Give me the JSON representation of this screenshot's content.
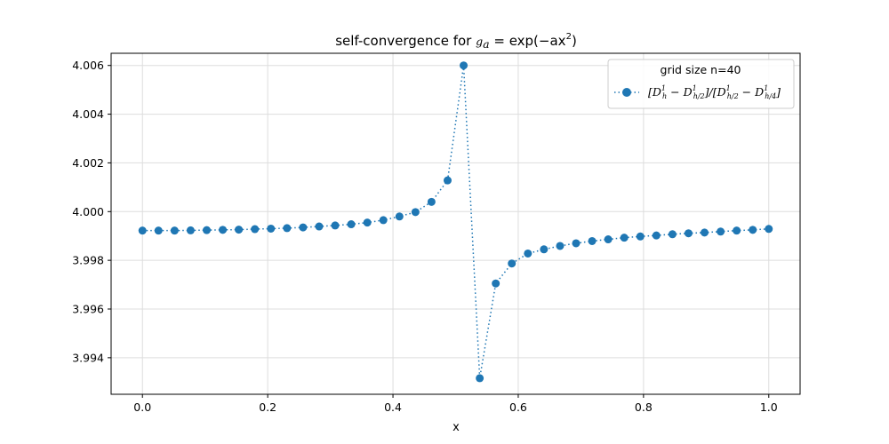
{
  "chart_data": {
    "type": "line",
    "title_prefix": "self-convergence for ",
    "title_math": "g",
    "title_math_sub": "a",
    "title_math_rest": " = exp(−ax",
    "title_math_sup": "2",
    "title_math_close": ")",
    "xlabel": "x",
    "ylabel": "",
    "xlim": [
      -0.05,
      1.05
    ],
    "ylim": [
      3.9925,
      4.0065
    ],
    "x_ticks": [
      0.0,
      0.2,
      0.4,
      0.6,
      0.8,
      1.0
    ],
    "x_tick_labels": [
      "0.0",
      "0.2",
      "0.4",
      "0.6",
      "0.8",
      "1.0"
    ],
    "y_ticks": [
      3.994,
      3.996,
      3.998,
      4.0,
      4.002,
      4.004,
      4.006
    ],
    "y_tick_labels": [
      "3.994",
      "3.996",
      "3.998",
      "4.000",
      "4.002",
      "4.004",
      "4.006"
    ],
    "grid": true,
    "legend": {
      "placement": "top-right",
      "title": "grid size n=40",
      "entry": "[D¹h − D¹h/2]/[D¹h/2 − D¹h/4]"
    },
    "colors": {
      "series": "#1f77b4"
    },
    "series": [
      {
        "name": "[D¹h − D¹h/2]/[D¹h/2 − D¹h/4]",
        "style": "dotted line with circle markers",
        "x": [
          0.0,
          0.0256,
          0.0513,
          0.0769,
          0.1026,
          0.1282,
          0.1538,
          0.1795,
          0.2051,
          0.2308,
          0.2564,
          0.2821,
          0.3077,
          0.3333,
          0.359,
          0.3846,
          0.4103,
          0.4359,
          0.4615,
          0.4872,
          0.5128,
          0.5385,
          0.5641,
          0.5897,
          0.6154,
          0.641,
          0.6667,
          0.6923,
          0.7179,
          0.7436,
          0.7692,
          0.7949,
          0.8205,
          0.8462,
          0.8718,
          0.8974,
          0.9231,
          0.9487,
          0.9744,
          1.0
        ],
        "y": [
          3.99922,
          3.99922,
          3.99922,
          3.99923,
          3.99924,
          3.99925,
          3.99926,
          3.99928,
          3.9993,
          3.99932,
          3.99935,
          3.99939,
          3.99943,
          3.99948,
          3.99955,
          3.99965,
          3.9998,
          3.99998,
          4.0004,
          4.00128,
          4.006,
          3.99316,
          3.99705,
          3.99787,
          3.99828,
          3.99845,
          3.99859,
          3.9987,
          3.99879,
          3.99886,
          3.99893,
          3.99898,
          3.99902,
          3.99907,
          3.99911,
          3.99914,
          3.99918,
          3.99922,
          3.99925,
          3.99929
        ]
      }
    ]
  }
}
